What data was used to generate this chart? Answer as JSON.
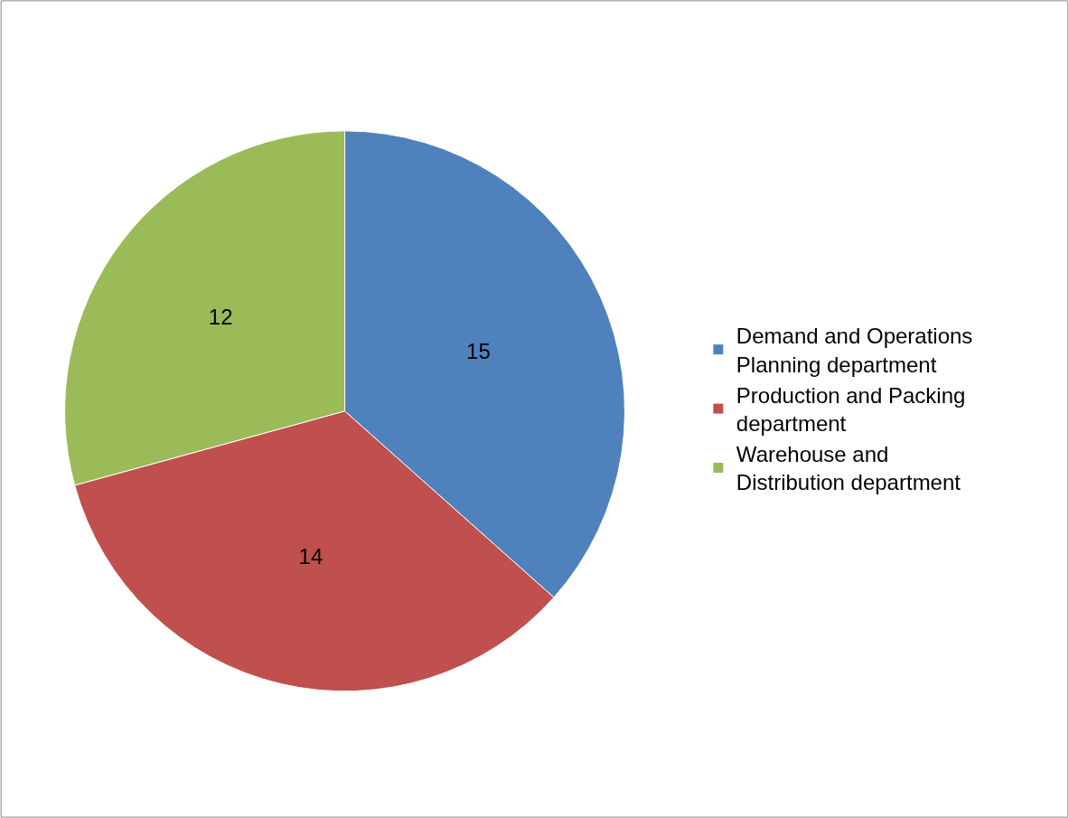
{
  "chart_data": {
    "type": "pie",
    "categories": [
      "Demand and Operations Planning department",
      "Production and Packing department",
      "Warehouse and Distribution department"
    ],
    "values": [
      15,
      14,
      12
    ],
    "colors": [
      "#4f81bd",
      "#c0504d",
      "#9bbb59"
    ],
    "data_labels": true,
    "legend": "right"
  }
}
